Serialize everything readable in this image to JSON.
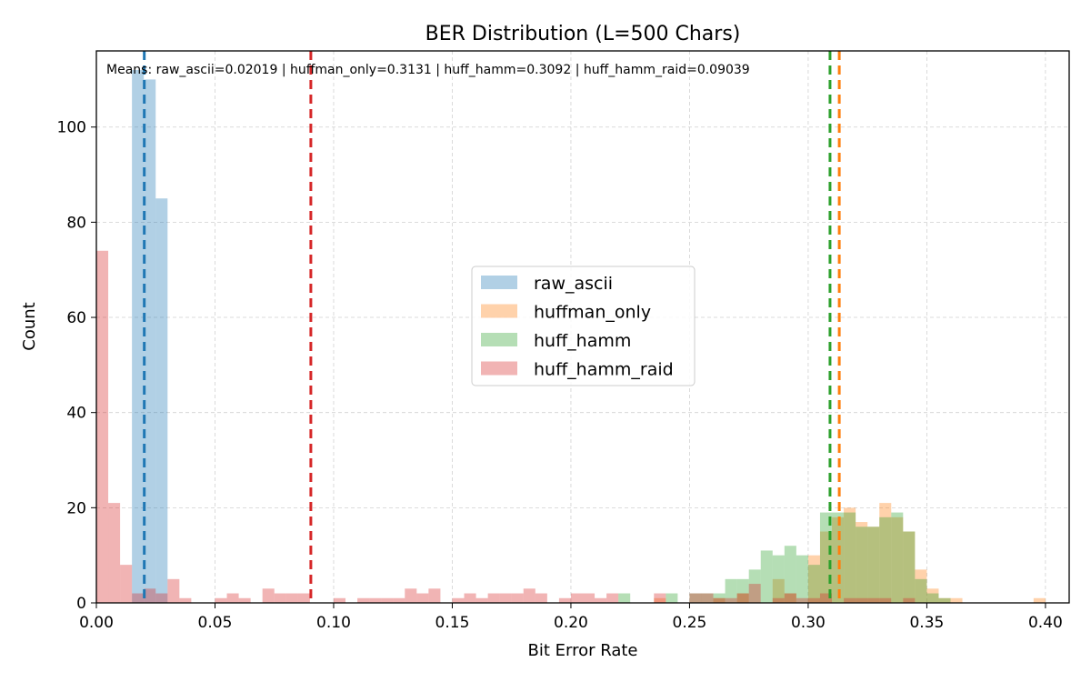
{
  "chart_data": {
    "type": "histogram",
    "title": "BER Distribution (L=500 Chars)",
    "xlabel": "Bit Error Rate",
    "ylabel": "Count",
    "xlim": [
      0.0,
      0.41
    ],
    "ylim": [
      0,
      116
    ],
    "bin_width": 0.005,
    "xticks": [
      "0.00",
      "0.05",
      "0.10",
      "0.15",
      "0.20",
      "0.25",
      "0.30",
      "0.35",
      "0.40"
    ],
    "yticks": [
      "0",
      "20",
      "40",
      "60",
      "80",
      "100"
    ],
    "grid": true,
    "annotation": "Means: raw_ascii=0.02019 | huffman_only=0.3131 | huff_hamm=0.3092 | huff_hamm_raid=0.09039",
    "legend": {
      "placement": "center"
    },
    "series": [
      {
        "name": "raw_ascii",
        "color": "#1f77b4",
        "mean": 0.02019,
        "bins": [
          [
            0.015,
            112
          ],
          [
            0.02,
            110
          ],
          [
            0.025,
            85
          ]
        ]
      },
      {
        "name": "huffman_only",
        "color": "#ff7f0e",
        "mean": 0.3131,
        "bins": [
          [
            0.235,
            1
          ],
          [
            0.26,
            1
          ],
          [
            0.27,
            2
          ],
          [
            0.285,
            5
          ],
          [
            0.29,
            2
          ],
          [
            0.3,
            10
          ],
          [
            0.305,
            15
          ],
          [
            0.31,
            18
          ],
          [
            0.315,
            20
          ],
          [
            0.32,
            17
          ],
          [
            0.325,
            16
          ],
          [
            0.33,
            21
          ],
          [
            0.335,
            18
          ],
          [
            0.34,
            15
          ],
          [
            0.345,
            7
          ],
          [
            0.35,
            3
          ],
          [
            0.355,
            1
          ],
          [
            0.36,
            1
          ],
          [
            0.395,
            1
          ]
        ]
      },
      {
        "name": "huff_hamm",
        "color": "#2ca02c",
        "mean": 0.3092,
        "bins": [
          [
            0.22,
            2
          ],
          [
            0.24,
            2
          ],
          [
            0.25,
            2
          ],
          [
            0.255,
            2
          ],
          [
            0.26,
            2
          ],
          [
            0.265,
            5
          ],
          [
            0.27,
            5
          ],
          [
            0.275,
            7
          ],
          [
            0.28,
            11
          ],
          [
            0.285,
            10
          ],
          [
            0.29,
            12
          ],
          [
            0.295,
            10
          ],
          [
            0.3,
            8
          ],
          [
            0.305,
            19
          ],
          [
            0.31,
            19
          ],
          [
            0.315,
            19
          ],
          [
            0.32,
            16
          ],
          [
            0.325,
            16
          ],
          [
            0.33,
            18
          ],
          [
            0.335,
            19
          ],
          [
            0.34,
            15
          ],
          [
            0.345,
            5
          ],
          [
            0.35,
            2
          ],
          [
            0.355,
            1
          ]
        ]
      },
      {
        "name": "huff_hamm_raid",
        "color": "#d62728",
        "mean": 0.09039,
        "bins": [
          [
            0.0,
            74
          ],
          [
            0.005,
            21
          ],
          [
            0.01,
            8
          ],
          [
            0.015,
            2
          ],
          [
            0.02,
            3
          ],
          [
            0.025,
            2
          ],
          [
            0.03,
            5
          ],
          [
            0.035,
            1
          ],
          [
            0.05,
            1
          ],
          [
            0.055,
            2
          ],
          [
            0.06,
            1
          ],
          [
            0.07,
            3
          ],
          [
            0.075,
            2
          ],
          [
            0.08,
            2
          ],
          [
            0.085,
            2
          ],
          [
            0.1,
            1
          ],
          [
            0.11,
            1
          ],
          [
            0.115,
            1
          ],
          [
            0.12,
            1
          ],
          [
            0.125,
            1
          ],
          [
            0.13,
            3
          ],
          [
            0.135,
            2
          ],
          [
            0.14,
            3
          ],
          [
            0.15,
            1
          ],
          [
            0.155,
            2
          ],
          [
            0.16,
            1
          ],
          [
            0.165,
            2
          ],
          [
            0.17,
            2
          ],
          [
            0.175,
            2
          ],
          [
            0.18,
            3
          ],
          [
            0.185,
            2
          ],
          [
            0.195,
            1
          ],
          [
            0.2,
            2
          ],
          [
            0.205,
            2
          ],
          [
            0.21,
            1
          ],
          [
            0.215,
            2
          ],
          [
            0.235,
            2
          ],
          [
            0.25,
            2
          ],
          [
            0.255,
            2
          ],
          [
            0.26,
            1
          ],
          [
            0.265,
            1
          ],
          [
            0.27,
            2
          ],
          [
            0.275,
            4
          ],
          [
            0.285,
            1
          ],
          [
            0.29,
            2
          ],
          [
            0.295,
            1
          ],
          [
            0.3,
            1
          ],
          [
            0.305,
            2
          ],
          [
            0.315,
            1
          ],
          [
            0.32,
            1
          ],
          [
            0.325,
            1
          ],
          [
            0.33,
            1
          ],
          [
            0.34,
            1
          ]
        ]
      }
    ]
  }
}
